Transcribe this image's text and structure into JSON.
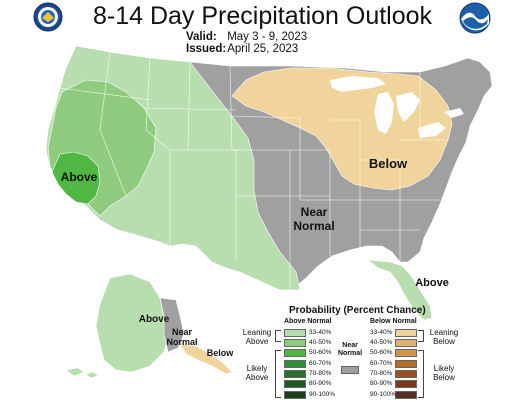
{
  "header": {
    "title": "8-14 Day Precipitation Outlook",
    "valid_label": "Valid:",
    "valid_value": "May 3 - 9, 2023",
    "issued_label": "Issued:",
    "issued_value": "April 25, 2023"
  },
  "map": {
    "labels": {
      "above_west": "Above",
      "below_ne": "Below",
      "near_normal_center": "Near\nNormal",
      "above_florida": "Above",
      "above_alaska": "Above",
      "near_normal_alaska": "Near\nNormal",
      "below_alaska": "Below"
    },
    "colors": {
      "above_33_40": "#b8deb0",
      "above_40_50": "#8ecb7e",
      "above_50_60": "#4eb843",
      "near_normal": "#a0a0a0",
      "below_33_40": "#f1d49b",
      "water": "#ffffff",
      "border": "#ffffff"
    }
  },
  "legend": {
    "title": "Probability (Percent Chance)",
    "above_header": "Above Normal",
    "below_header": "Below Normal",
    "near_header": "Near\nNormal",
    "leaning_above": "Leaning\nAbove",
    "likely_above": "Likely\nAbove",
    "leaning_below": "Leaning\nBelow",
    "likely_below": "Likely\nBelow",
    "above": [
      {
        "range": "33-40%",
        "color": "#b8deb0"
      },
      {
        "range": "40-50%",
        "color": "#8ecb7e"
      },
      {
        "range": "50-60%",
        "color": "#4eb843"
      },
      {
        "range": "60-70%",
        "color": "#2e8f3a"
      },
      {
        "range": "70-80%",
        "color": "#2a6e30"
      },
      {
        "range": "80-90%",
        "color": "#1f5a24"
      },
      {
        "range": "90-100%",
        "color": "#15401a"
      }
    ],
    "below": [
      {
        "range": "33-40%",
        "color": "#f1d49b"
      },
      {
        "range": "40-50%",
        "color": "#ddb273"
      },
      {
        "range": "50-60%",
        "color": "#d4944a"
      },
      {
        "range": "60-70%",
        "color": "#b86a2b"
      },
      {
        "range": "70-80%",
        "color": "#9a5020"
      },
      {
        "range": "80-90%",
        "color": "#7a3a18"
      },
      {
        "range": "90-100%",
        "color": "#553020"
      }
    ],
    "near_color": "#a0a0a0"
  },
  "logos": {
    "left": "doc-seal-icon",
    "right": "noaa-logo-icon"
  }
}
